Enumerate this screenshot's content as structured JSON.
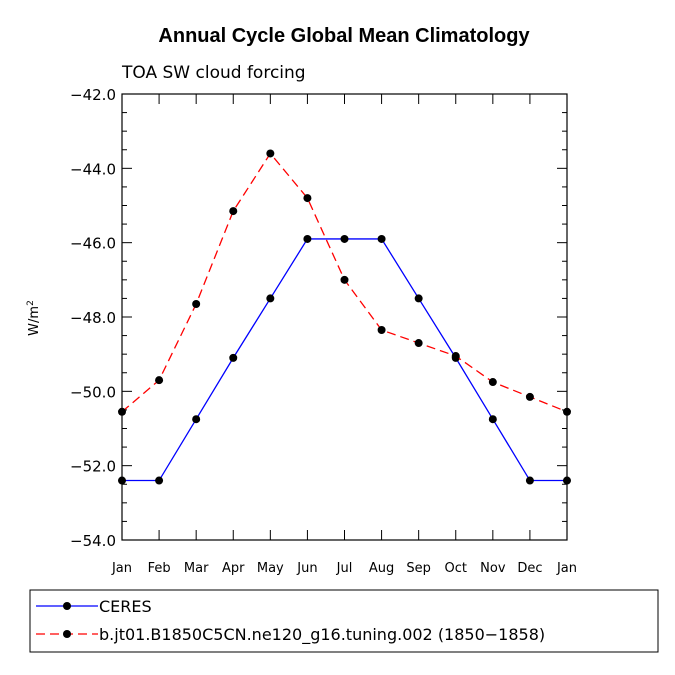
{
  "chart_data": {
    "type": "line",
    "title": "Annual Cycle Global Mean Climatology",
    "subtitle": "TOA SW cloud forcing",
    "ylabel_base": "W/m",
    "ylabel_sup": "2",
    "xlabel": "",
    "categories": [
      "Jan",
      "Feb",
      "Mar",
      "Apr",
      "May",
      "Jun",
      "Jul",
      "Aug",
      "Sep",
      "Oct",
      "Nov",
      "Dec",
      "Jan"
    ],
    "ylim": [
      -54.0,
      -42.0
    ],
    "yticks": [
      -42.0,
      -44.0,
      -46.0,
      -48.0,
      -50.0,
      -52.0,
      -54.0
    ],
    "ytick_labels": [
      "−42.0",
      "−44.0",
      "−46.0",
      "−48.0",
      "−50.0",
      "−52.0",
      "−54.0"
    ],
    "series": [
      {
        "name": "CERES",
        "color": "#0000ff",
        "dash": "solid",
        "values": [
          -52.4,
          -52.4,
          -50.75,
          -49.1,
          -47.5,
          -45.9,
          -45.9,
          -45.9,
          -47.5,
          -49.1,
          -50.75,
          -52.4,
          -52.4
        ]
      },
      {
        "name": "b.jt01.B1850C5CN.ne120_g16.tuning.002 (1850−1858)",
        "color": "#ff0000",
        "dash": "dashed",
        "values": [
          -50.55,
          -49.7,
          -47.65,
          -45.15,
          -43.6,
          -44.8,
          -47.0,
          -48.35,
          -48.7,
          -49.05,
          -49.75,
          -50.15,
          -50.55
        ]
      }
    ],
    "legend": [
      "CERES",
      "b.jt01.B1850C5CN.ne120_g16.tuning.002 (1850−1858)"
    ]
  }
}
